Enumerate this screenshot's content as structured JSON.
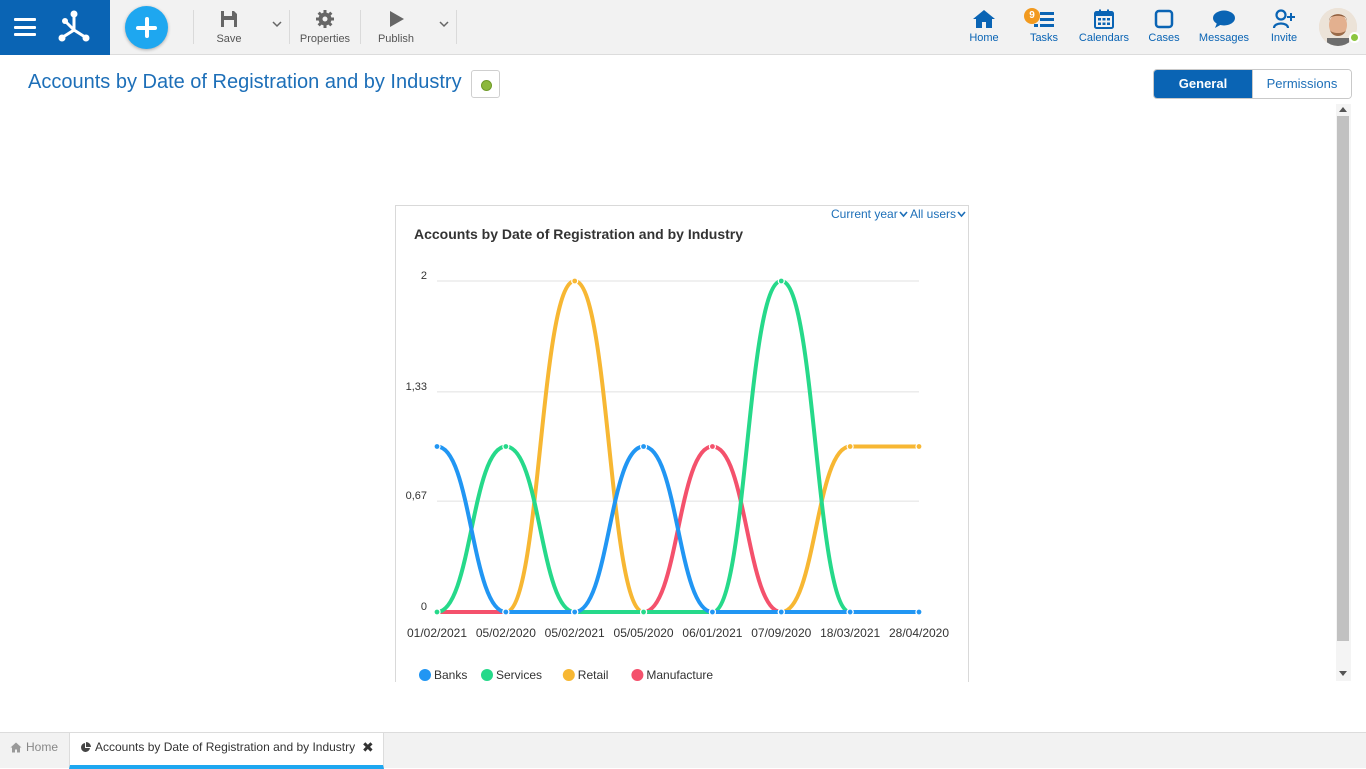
{
  "toolbar": {
    "save_label": "Save",
    "properties_label": "Properties",
    "publish_label": "Publish"
  },
  "nav": {
    "home_label": "Home",
    "tasks_label": "Tasks",
    "tasks_badge": "9",
    "calendars_label": "Calendars",
    "cases_label": "Cases",
    "messages_label": "Messages",
    "invite_label": "Invite"
  },
  "page": {
    "title": "Accounts by Date of Registration and by Industry",
    "status_color": "#8cb83c"
  },
  "segmented": {
    "general_label": "General",
    "permissions_label": "Permissions"
  },
  "chart_panel": {
    "filter_period": "Current year",
    "filter_users": "All users"
  },
  "chart_data": {
    "type": "line",
    "title": "Accounts by Date of Registration and by Industry",
    "categories": [
      "01/02/2021",
      "05/02/2020",
      "05/02/2021",
      "05/05/2020",
      "06/01/2021",
      "07/09/2020",
      "18/03/2021",
      "28/04/2020"
    ],
    "ylim": [
      0,
      2
    ],
    "yticks": [
      "0",
      "0,67",
      "1,33",
      "2"
    ],
    "ytick_values": [
      0,
      0.67,
      1.33,
      2
    ],
    "grid": true,
    "legend_position": "bottom-left",
    "series": [
      {
        "name": "Banks",
        "color": "#2196f3",
        "values": [
          1,
          0,
          0,
          1,
          0,
          0,
          0,
          0
        ]
      },
      {
        "name": "Services",
        "color": "#26d98a",
        "values": [
          0,
          1,
          0,
          0,
          0,
          2,
          0,
          0
        ]
      },
      {
        "name": "Retail",
        "color": "#f7b733",
        "values": [
          0,
          0,
          2,
          0,
          0,
          0,
          1,
          1
        ]
      },
      {
        "name": "Manufacture",
        "color": "#f4516c",
        "values": [
          0,
          0,
          0,
          0,
          1,
          0,
          0,
          0
        ]
      }
    ]
  },
  "bottom_tabs": {
    "home_label": "Home",
    "active_label": "Accounts by Date of Registration and by Industry"
  }
}
